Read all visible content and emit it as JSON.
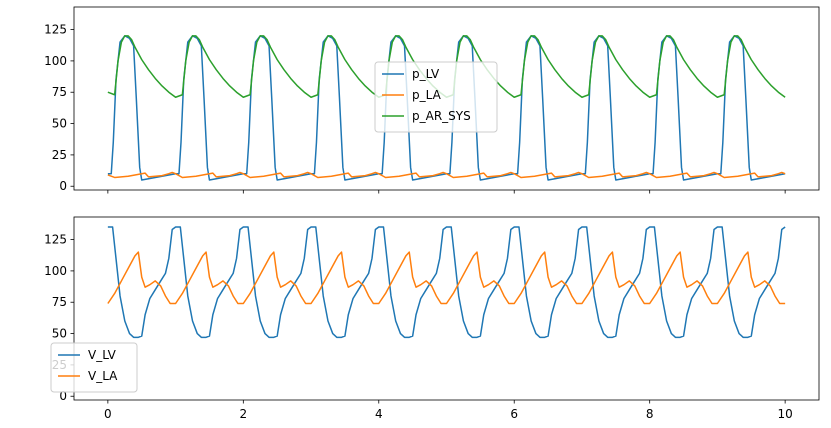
{
  "chart_data": [
    {
      "type": "line",
      "xlim": [
        -0.5,
        10.5
      ],
      "ylim": [
        -3,
        143
      ],
      "xticks": [
        0,
        2,
        4,
        6,
        8,
        10
      ],
      "xtick_labels_visible": false,
      "yticks": [
        0,
        25,
        50,
        75,
        100,
        125
      ],
      "ytick_labels": [
        "0",
        "25",
        "50",
        "75",
        "100",
        "125"
      ],
      "grid": false,
      "legend": "center",
      "beat_period_s": 1.0,
      "series": [
        {
          "name": "p_LV",
          "color": "#1f77b4",
          "x": [
            0,
            0.05,
            0.08,
            0.12,
            0.18,
            0.25,
            0.32,
            0.38,
            0.42,
            0.47,
            0.5,
            0.6,
            0.7,
            0.8,
            0.9,
            1.0
          ],
          "y": [
            10,
            10,
            35,
            85,
            115,
            120,
            118,
            112,
            70,
            15,
            5,
            6,
            7,
            8,
            9,
            10
          ]
        },
        {
          "name": "p_LA",
          "color": "#ff7f0e",
          "x": [
            0,
            0.1,
            0.2,
            0.3,
            0.4,
            0.5,
            0.55,
            0.6,
            0.7,
            0.8,
            0.9,
            0.95,
            1.0
          ],
          "y": [
            9,
            7,
            7.5,
            8,
            9,
            10,
            10.5,
            7.5,
            8,
            8.5,
            10,
            11,
            10
          ]
        },
        {
          "name": "p_AR_SYS",
          "color": "#2ca02c",
          "x": [
            0,
            0.1,
            0.15,
            0.2,
            0.25,
            0.3,
            0.35,
            0.4,
            0.5,
            0.6,
            0.7,
            0.8,
            0.9,
            1.0
          ],
          "y": [
            75,
            73,
            100,
            115,
            120,
            120,
            117,
            111,
            101,
            93,
            86,
            80,
            75,
            71
          ]
        }
      ]
    },
    {
      "type": "line",
      "xlim": [
        -0.5,
        10.5
      ],
      "ylim": [
        -3,
        143
      ],
      "xticks": [
        0,
        2,
        4,
        6,
        8,
        10
      ],
      "xtick_labels": [
        "0",
        "2",
        "4",
        "6",
        "8",
        "10"
      ],
      "yticks": [
        0,
        25,
        50,
        75,
        100,
        125
      ],
      "ytick_labels": [
        "0",
        "25",
        "50",
        "75",
        "100",
        "125"
      ],
      "grid": false,
      "legend": "lower-left",
      "beat_period_s": 1.0,
      "series": [
        {
          "name": "V_LV",
          "color": "#1f77b4",
          "x": [
            0,
            0.07,
            0.12,
            0.18,
            0.25,
            0.32,
            0.38,
            0.45,
            0.5,
            0.55,
            0.62,
            0.7,
            0.78,
            0.85,
            0.9,
            0.95,
            1.0
          ],
          "y": [
            135,
            135,
            110,
            80,
            60,
            50,
            47,
            47,
            48,
            65,
            78,
            85,
            92,
            98,
            110,
            133,
            135
          ]
        },
        {
          "name": "V_LA",
          "color": "#ff7f0e",
          "x": [
            0,
            0.1,
            0.2,
            0.3,
            0.4,
            0.45,
            0.5,
            0.55,
            0.62,
            0.7,
            0.78,
            0.85,
            0.92,
            1.0
          ],
          "y": [
            74,
            82,
            92,
            102,
            112,
            115,
            95,
            87,
            89,
            92,
            88,
            80,
            74,
            74
          ]
        }
      ]
    }
  ]
}
